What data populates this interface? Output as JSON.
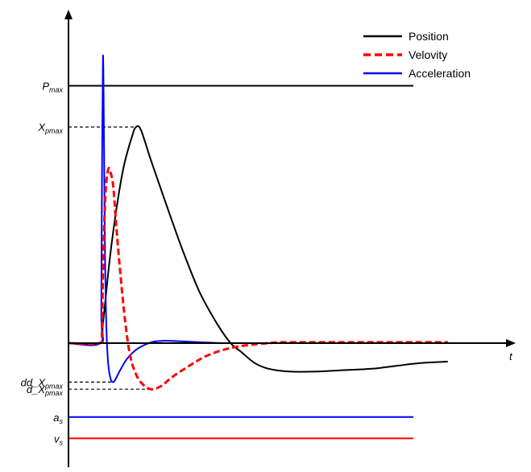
{
  "chart_data": {
    "type": "line",
    "title": "",
    "xlabel": "t",
    "ylabel": "",
    "grid": false,
    "legend": {
      "placement": "top-right",
      "entries": [
        {
          "label": "Position",
          "color": "#000000",
          "style": "solid"
        },
        {
          "label": "Velovity",
          "color": "#ff0000",
          "style": "dashed"
        },
        {
          "label": "Acceleration",
          "color": "#0000ff",
          "style": "solid"
        }
      ]
    },
    "reference_lines": [
      {
        "name": "P_max",
        "base": "P",
        "subscript": "max",
        "y": 0.905,
        "color": "#000000",
        "x_end": 1.0
      },
      {
        "name": "a_s",
        "base": "a",
        "subscript": "s",
        "y": -0.26,
        "color": "#0000ff",
        "x_end": 1.0
      },
      {
        "name": "v_s",
        "base": "v",
        "subscript": "s",
        "y": -0.335,
        "color": "#ff0000",
        "x_end": 1.0
      }
    ],
    "peak_markers": [
      {
        "name": "X_pmax",
        "base": "X",
        "subscript": "pmax",
        "y": 0.76,
        "x_end": 0.196
      },
      {
        "name": "dd_X_pmax",
        "base": "dd_X",
        "subscript": "pmax",
        "y": -0.137,
        "x_end": 0.129
      },
      {
        "name": "d_X_pmax",
        "base": "d_X",
        "subscript": "pmax",
        "y": -0.162,
        "x_end": 0.245
      }
    ],
    "series": [
      {
        "name": "Position",
        "color": "#000000",
        "dash": "none",
        "x": [
          0.0,
          0.09,
          0.1,
          0.12,
          0.14,
          0.16,
          0.185,
          0.196,
          0.21,
          0.24,
          0.28,
          0.33,
          0.38,
          0.43,
          0.47,
          0.5,
          0.54,
          0.58,
          0.64,
          0.72,
          0.8,
          0.88,
          0.95,
          1.02,
          1.1
        ],
        "y": [
          0.0,
          0.0,
          0.07,
          0.3,
          0.48,
          0.62,
          0.73,
          0.76,
          0.75,
          0.64,
          0.5,
          0.33,
          0.18,
          0.07,
          0.0,
          -0.03,
          -0.07,
          -0.09,
          -0.1,
          -0.1,
          -0.095,
          -0.09,
          -0.08,
          -0.07,
          -0.065
        ]
      },
      {
        "name": "Velovity",
        "color": "#ff0000",
        "dash": "8,4",
        "x": [
          0.0,
          0.09,
          0.097,
          0.1,
          0.107,
          0.115,
          0.122,
          0.13,
          0.138,
          0.15,
          0.165,
          0.18,
          0.2,
          0.225,
          0.245,
          0.27,
          0.3,
          0.35,
          0.4,
          0.46,
          0.52,
          0.58,
          0.62,
          0.7,
          0.8,
          0.9,
          1.1
        ],
        "y": [
          0.0,
          0.0,
          0.04,
          0.25,
          0.52,
          0.61,
          0.6,
          0.55,
          0.42,
          0.25,
          0.07,
          -0.05,
          -0.12,
          -0.155,
          -0.162,
          -0.15,
          -0.12,
          -0.08,
          -0.045,
          -0.02,
          -0.007,
          0.0,
          0.003,
          0.003,
          0.003,
          0.003,
          0.003
        ]
      },
      {
        "name": "Acceleration",
        "color": "#0000ff",
        "dash": "none",
        "x": [
          0.0,
          0.093,
          0.095,
          0.097,
          0.1,
          0.103,
          0.106,
          0.11,
          0.115,
          0.122,
          0.129,
          0.135,
          0.15,
          0.17,
          0.2,
          0.24,
          0.27,
          0.3,
          0.35,
          0.4,
          0.45,
          0.5
        ],
        "y": [
          0.0,
          0.0,
          0.1,
          0.55,
          1.01,
          0.7,
          0.3,
          0.05,
          -0.07,
          -0.125,
          -0.137,
          -0.13,
          -0.095,
          -0.055,
          -0.02,
          0.003,
          0.008,
          0.008,
          0.005,
          0.002,
          0.0,
          0.0
        ]
      }
    ]
  }
}
